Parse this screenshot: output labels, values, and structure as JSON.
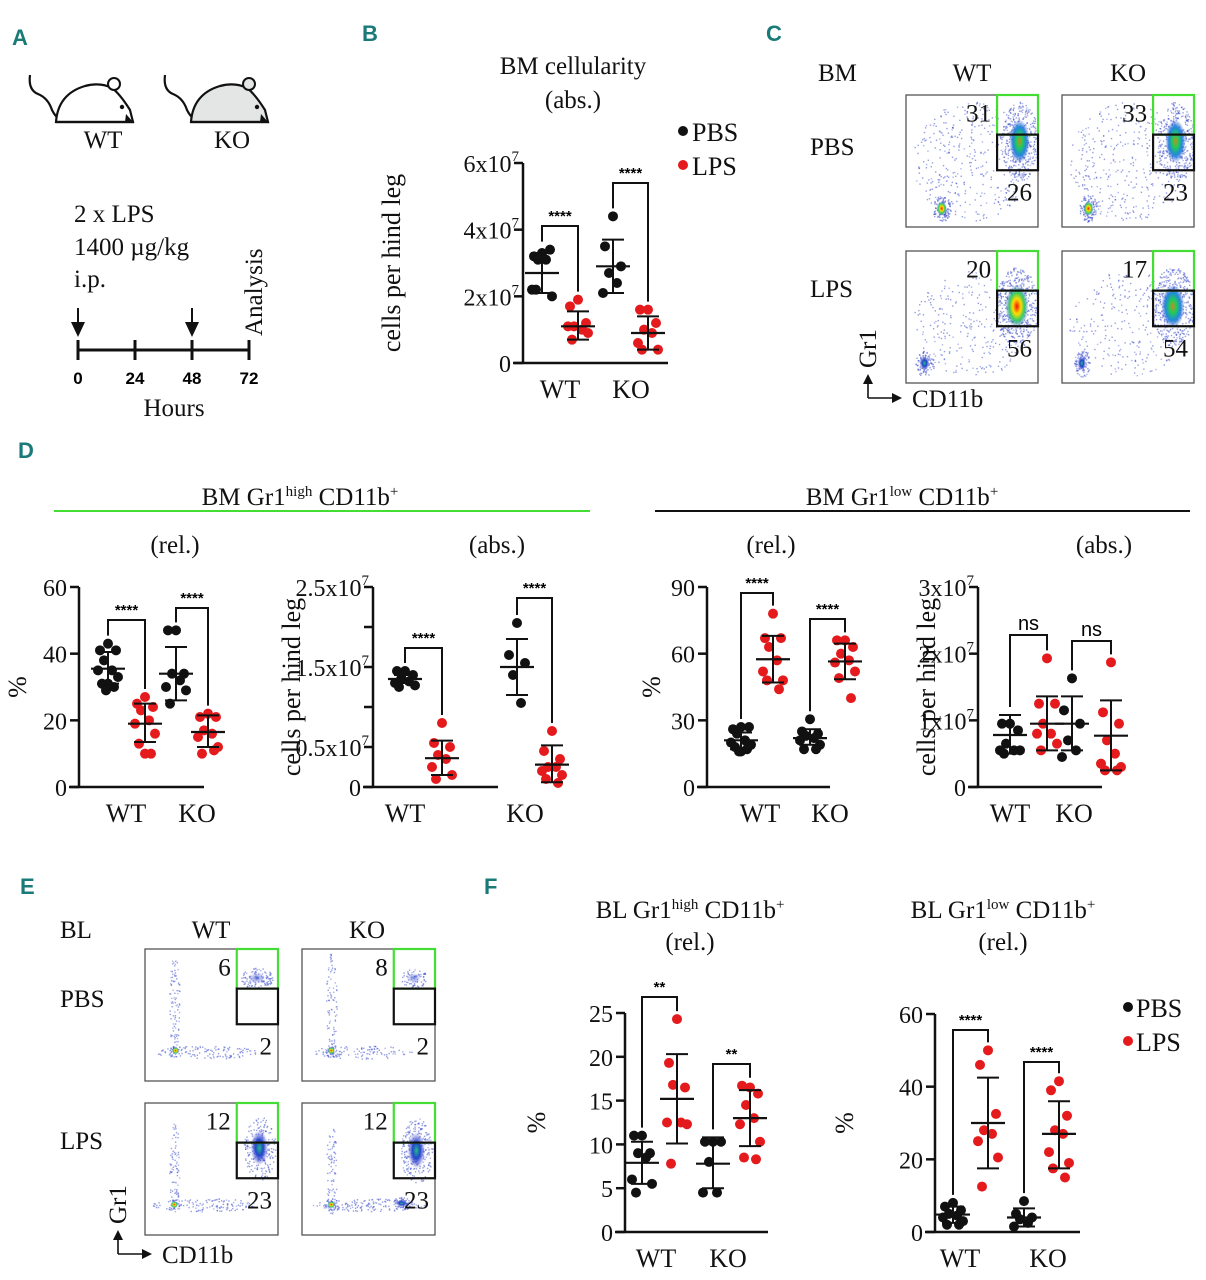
{
  "figure": {
    "panel_labels": [
      "A",
      "B",
      "C",
      "D",
      "E",
      "F"
    ],
    "colors": {
      "panel_label": "#1a7a78",
      "pbs": "#111111",
      "lps": "#e41a1c",
      "gate_high": "#44dd33",
      "gate_low": "#111111",
      "divider_high": "#44dd33",
      "divider_low": "#111111"
    }
  },
  "panelA": {
    "mice": [
      {
        "label": "WT",
        "fill": "#ffffff"
      },
      {
        "label": "KO",
        "fill": "#e4e6e6"
      }
    ],
    "protocol": [
      "2 x LPS",
      "1400 µg/kg",
      "i.p."
    ],
    "timeline_ticks": [
      "0",
      "24",
      "48",
      "72"
    ],
    "injections_at": [
      "0",
      "48"
    ],
    "end_label": "Analysis",
    "xlabel": "Hours"
  },
  "legend": {
    "items": [
      {
        "label": "PBS",
        "color": "#111111"
      },
      {
        "label": "LPS",
        "color": "#e41a1c"
      }
    ]
  },
  "panelC": {
    "tissue": "BM",
    "cols": [
      "WT",
      "KO"
    ],
    "rows": [
      "PBS",
      "LPS"
    ],
    "yaxis": "Gr1",
    "xaxis": "CD11b",
    "gates": [
      {
        "row": "PBS",
        "col": "WT",
        "high": "31",
        "low": "26"
      },
      {
        "row": "PBS",
        "col": "KO",
        "high": "33",
        "low": "23"
      },
      {
        "row": "LPS",
        "col": "WT",
        "high": "20",
        "low": "56"
      },
      {
        "row": "LPS",
        "col": "KO",
        "high": "17",
        "low": "54"
      }
    ]
  },
  "panelD": {
    "group_high": {
      "title": "BM Gr1",
      "sup": "high",
      "rest": " CD11b",
      "plus": "+"
    },
    "group_low": {
      "title": "BM Gr1",
      "sup": "low",
      "rest": " CD11b",
      "plus": "+"
    }
  },
  "panelE": {
    "tissue": "BL",
    "cols": [
      "WT",
      "KO"
    ],
    "rows": [
      "PBS",
      "LPS"
    ],
    "yaxis": "Gr1",
    "xaxis": "CD11b",
    "gates": [
      {
        "row": "PBS",
        "col": "WT",
        "high": "6",
        "low": "2"
      },
      {
        "row": "PBS",
        "col": "KO",
        "high": "8",
        "low": "2"
      },
      {
        "row": "LPS",
        "col": "WT",
        "high": "12",
        "low": "23"
      },
      {
        "row": "LPS",
        "col": "KO",
        "high": "12",
        "low": "23"
      }
    ]
  },
  "chart_data": [
    {
      "id": "B",
      "type": "scatter",
      "title": "BM cellularity",
      "subtitle": "(abs.)",
      "ylabel": "cells per hind leg",
      "ylim": [
        0,
        60000000
      ],
      "yticks": [
        {
          "v": 0,
          "label": "0"
        },
        {
          "v": 20000000,
          "label": "2x10",
          "exp": "7"
        },
        {
          "v": 40000000,
          "label": "4x10",
          "exp": "7"
        },
        {
          "v": 60000000,
          "label": "6x10",
          "exp": "7"
        }
      ],
      "categories": [
        "WT",
        "KO"
      ],
      "series": [
        {
          "name": "WT PBS",
          "group": "WT",
          "treatment": "PBS",
          "values": [
            33,
            32,
            34,
            31,
            31,
            22,
            20,
            22
          ],
          "mean": 27,
          "sd": [
            21,
            33
          ]
        },
        {
          "name": "WT LPS",
          "group": "WT",
          "treatment": "LPS",
          "values": [
            19,
            17,
            12,
            11,
            10,
            11,
            9,
            7
          ],
          "mean": 11,
          "sd": [
            7,
            15.5
          ]
        },
        {
          "name": "KO PBS",
          "group": "KO",
          "treatment": "PBS",
          "values": [
            44,
            35,
            29,
            27,
            24,
            21
          ],
          "mean": 29,
          "sd": [
            21,
            37
          ]
        },
        {
          "name": "KO LPS",
          "group": "KO",
          "treatment": "LPS",
          "values": [
            16,
            16,
            12,
            10,
            9,
            6,
            4,
            4
          ],
          "mean": 9,
          "sd": [
            4,
            14
          ]
        }
      ],
      "value_scale": 1000000,
      "significance": [
        {
          "group": "WT",
          "label": "****"
        },
        {
          "group": "KO",
          "label": "****"
        }
      ]
    },
    {
      "id": "D1",
      "type": "scatter",
      "title": "(rel.)",
      "ylabel": "%",
      "ylim": [
        0,
        60
      ],
      "yticks": [
        {
          "v": 0,
          "label": "0"
        },
        {
          "v": 20,
          "label": "20"
        },
        {
          "v": 40,
          "label": "40"
        },
        {
          "v": 60,
          "label": "60"
        }
      ],
      "categories": [
        "WT",
        "KO"
      ],
      "series": [
        {
          "name": "WT PBS",
          "values": [
            43,
            41,
            41,
            38,
            35,
            35,
            33,
            31,
            30,
            31,
            29
          ],
          "mean": 35.5,
          "sd": [
            31,
            40.5
          ]
        },
        {
          "name": "WT LPS",
          "values": [
            27,
            25,
            24,
            23,
            20,
            19,
            16,
            13,
            10,
            10
          ],
          "mean": 19,
          "sd": [
            13.5,
            25
          ]
        },
        {
          "name": "KO PBS",
          "values": [
            47,
            47,
            34,
            34,
            32,
            30,
            29,
            25
          ],
          "mean": 34,
          "sd": [
            26,
            42
          ]
        },
        {
          "name": "KO LPS",
          "values": [
            22,
            21,
            21,
            17,
            16,
            15,
            12,
            10,
            11
          ],
          "mean": 16.5,
          "sd": [
            12,
            21.5
          ]
        }
      ],
      "value_scale": 1,
      "significance": [
        {
          "group": "WT",
          "label": "****"
        },
        {
          "group": "KO",
          "label": "****"
        }
      ]
    },
    {
      "id": "D2",
      "type": "scatter",
      "title": "(abs.)",
      "ylabel": "cells per hind leg",
      "ylim": [
        0,
        25000000
      ],
      "yticks": [
        {
          "v": 0,
          "label": "0"
        },
        {
          "v": 5000000,
          "label": "0.5x10",
          "exp": "7"
        },
        {
          "v": 10000000,
          "label": ""
        },
        {
          "v": 15000000,
          "label": "1.5x10",
          "exp": "7"
        },
        {
          "v": 20000000,
          "label": ""
        },
        {
          "v": 25000000,
          "label": "2.5x10",
          "exp": "7"
        }
      ],
      "categories": [
        "WT",
        "KO"
      ],
      "series": [
        {
          "name": "WT PBS",
          "values": [
            14.5,
            14.5,
            14,
            13.5,
            13.2,
            13,
            12.7,
            12.5
          ],
          "mean": 13.5,
          "sd": [
            13,
            14
          ]
        },
        {
          "name": "WT LPS",
          "values": [
            8,
            5.5,
            5,
            4,
            3.5,
            2.5,
            1.5,
            1
          ],
          "mean": 3.6,
          "sd": [
            1.5,
            5.8
          ]
        },
        {
          "name": "KO PBS",
          "values": [
            20.5,
            16.5,
            15.5,
            14,
            10.5
          ],
          "mean": 15,
          "sd": [
            11.5,
            18.5
          ]
        },
        {
          "name": "KO LPS",
          "values": [
            7,
            4.5,
            3.5,
            2.5,
            2.5,
            2,
            1.5,
            1,
            0.5
          ],
          "mean": 2.8,
          "sd": [
            0.6,
            5.2
          ]
        }
      ],
      "value_scale": 1000000,
      "significance": [
        {
          "group": "WT",
          "label": "****"
        },
        {
          "group": "KO",
          "label": "****"
        }
      ]
    },
    {
      "id": "D3",
      "type": "scatter",
      "title": "(rel.)",
      "ylabel": "%",
      "ylim": [
        0,
        90
      ],
      "yticks": [
        {
          "v": 0,
          "label": "0"
        },
        {
          "v": 30,
          "label": "30"
        },
        {
          "v": 60,
          "label": "60"
        },
        {
          "v": 90,
          "label": "90"
        }
      ],
      "categories": [
        "WT",
        "KO"
      ],
      "series": [
        {
          "name": "WT PBS",
          "values": [
            27,
            26,
            27,
            24,
            21,
            20,
            19,
            18,
            17,
            16,
            16
          ],
          "mean": 21,
          "sd": [
            17,
            24.5
          ]
        },
        {
          "name": "WT LPS",
          "values": [
            78,
            67,
            67,
            63,
            57,
            52,
            48,
            48,
            44
          ],
          "mean": 57.5,
          "sd": [
            47,
            68
          ]
        },
        {
          "name": "KO PBS",
          "values": [
            30.5,
            25,
            24,
            23,
            22,
            21,
            19,
            17,
            17
          ],
          "mean": 22,
          "sd": [
            19,
            26
          ]
        },
        {
          "name": "KO LPS",
          "values": [
            66,
            66,
            63,
            60,
            57,
            56,
            52,
            49,
            40
          ],
          "mean": 56.5,
          "sd": [
            48.5,
            64.5
          ]
        }
      ],
      "value_scale": 1,
      "significance": [
        {
          "group": "WT",
          "label": "****"
        },
        {
          "group": "KO",
          "label": "****"
        }
      ]
    },
    {
      "id": "D4",
      "type": "scatter",
      "title": "(abs.)",
      "ylabel": "cells per hind leg",
      "ylim": [
        0,
        30000000
      ],
      "yticks": [
        {
          "v": 0,
          "label": "0"
        },
        {
          "v": 10000000,
          "label": "1x10",
          "exp": "7"
        },
        {
          "v": 20000000,
          "label": "2x10",
          "exp": "7"
        },
        {
          "v": 30000000,
          "label": "3x10",
          "exp": "7"
        }
      ],
      "categories": [
        "WT",
        "KO"
      ],
      "series": [
        {
          "name": "WT PBS",
          "values": [
            9.5,
            9.5,
            8.5,
            6.5,
            5.5,
            5.5,
            5.5,
            5
          ],
          "mean": 7.8,
          "sd": [
            5,
            10.8
          ]
        },
        {
          "name": "WT LPS",
          "values": [
            19.3,
            12.5,
            12.5,
            9.5,
            8,
            8,
            6.5,
            5.5
          ],
          "mean": 9.5,
          "sd": [
            5.5,
            13.6
          ]
        },
        {
          "name": "KO PBS",
          "values": [
            16.3,
            11.5,
            9.5,
            7,
            5.5,
            4.5
          ],
          "mean": 9.5,
          "sd": [
            5.5,
            13.6
          ]
        },
        {
          "name": "KO LPS",
          "values": [
            18.7,
            11.2,
            9.5,
            7,
            5,
            3.5,
            3,
            2.5,
            2.5
          ],
          "mean": 7.7,
          "sd": [
            2.5,
            13
          ]
        }
      ],
      "value_scale": 1000000,
      "significance": [
        {
          "group": "WT",
          "label": "ns"
        },
        {
          "group": "KO",
          "label": "ns"
        }
      ]
    },
    {
      "id": "F1",
      "type": "scatter",
      "title": "BL Gr1",
      "title_sup": "high",
      "title_rest": " CD11b",
      "title_plus": "+",
      "subtitle": "(rel.)",
      "ylabel": "%",
      "ylim": [
        0,
        25
      ],
      "yticks": [
        {
          "v": 0,
          "label": "0"
        },
        {
          "v": 5,
          "label": "5"
        },
        {
          "v": 10,
          "label": "10"
        },
        {
          "v": 15,
          "label": "15"
        },
        {
          "v": 20,
          "label": "20"
        },
        {
          "v": 25,
          "label": "25"
        }
      ],
      "categories": [
        "WT",
        "KO"
      ],
      "series": [
        {
          "name": "WT PBS",
          "values": [
            11,
            11,
            9,
            9,
            8.5,
            6,
            5.5,
            4.5
          ],
          "mean": 7.9,
          "sd": [
            5.5,
            10.3
          ]
        },
        {
          "name": "WT LPS",
          "values": [
            24.3,
            19.3,
            16.5,
            16.8,
            12.5,
            12.5,
            12.3,
            7.8
          ],
          "mean": 15.2,
          "sd": [
            10.1,
            20.3
          ]
        },
        {
          "name": "KO PBS",
          "values": [
            10.3,
            10.3,
            10.3,
            8,
            4.5,
            4.5
          ],
          "mean": 7.8,
          "sd": [
            5,
            10.8
          ]
        },
        {
          "name": "KO LPS",
          "values": [
            16.5,
            16.7,
            15.8,
            14.5,
            13,
            12.3,
            10.3,
            8.5,
            8.3
          ],
          "mean": 13,
          "sd": [
            9.8,
            16.2
          ]
        }
      ],
      "value_scale": 1,
      "significance": [
        {
          "group": "WT",
          "label": "**"
        },
        {
          "group": "KO",
          "label": "**"
        }
      ]
    },
    {
      "id": "F2",
      "type": "scatter",
      "title": "BL Gr1",
      "title_sup": "low",
      "title_rest": " CD11b",
      "title_plus": "+",
      "subtitle": "(rel.)",
      "ylabel": "%",
      "ylim": [
        0,
        60
      ],
      "yticks": [
        {
          "v": 0,
          "label": "0"
        },
        {
          "v": 20,
          "label": "20"
        },
        {
          "v": 40,
          "label": "40"
        },
        {
          "v": 60,
          "label": "60"
        }
      ],
      "categories": [
        "WT",
        "KO"
      ],
      "series": [
        {
          "name": "WT PBS",
          "values": [
            8,
            7,
            6,
            5,
            4.5,
            4,
            3,
            2,
            2
          ],
          "mean": 4.8,
          "sd": [
            2.5,
            7
          ]
        },
        {
          "name": "WT LPS",
          "values": [
            50,
            46,
            32.5,
            28,
            27,
            25,
            20.5,
            12.5
          ],
          "mean": 30,
          "sd": [
            17.5,
            42.5
          ]
        },
        {
          "name": "KO PBS",
          "values": [
            8.5,
            5,
            4,
            3.5,
            2.5,
            1.5
          ],
          "mean": 4,
          "sd": [
            1.5,
            6.5
          ]
        },
        {
          "name": "KO LPS",
          "values": [
            41.5,
            39,
            32,
            28,
            27,
            22,
            19,
            17.5,
            15
          ],
          "mean": 27,
          "sd": [
            17.5,
            36
          ]
        }
      ],
      "value_scale": 1,
      "significance": [
        {
          "group": "WT",
          "label": "****"
        },
        {
          "group": "KO",
          "label": "****"
        }
      ]
    }
  ]
}
